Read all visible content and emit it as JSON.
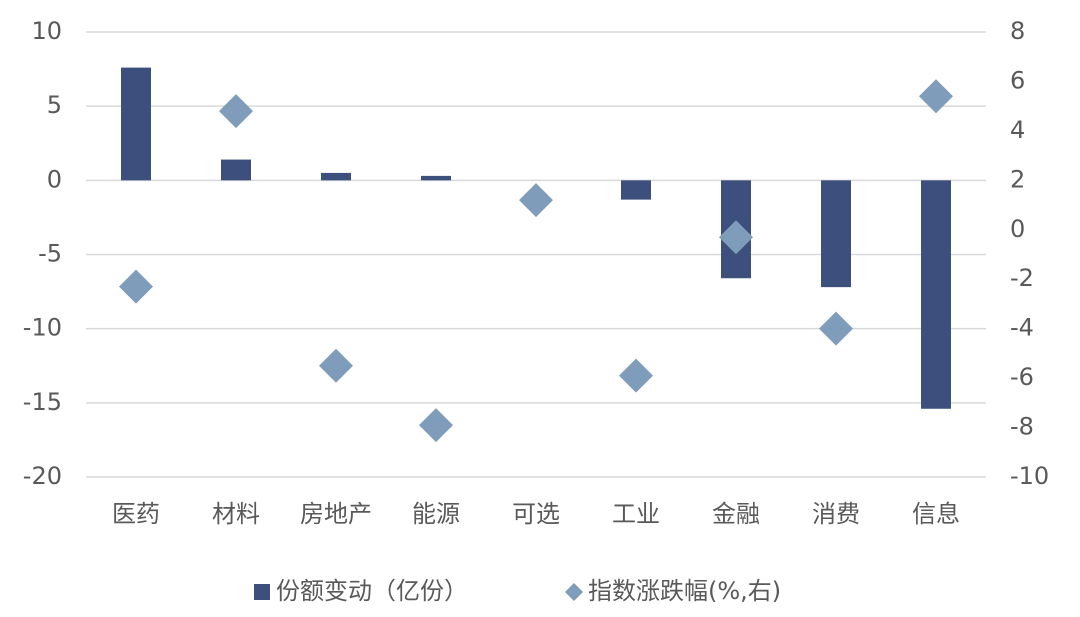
{
  "chart_data": {
    "type": "bar",
    "categories": [
      "医药",
      "材料",
      "房地产",
      "能源",
      "可选",
      "工业",
      "金融",
      "消费",
      "信息"
    ],
    "series": [
      {
        "name": "份额变动（亿份）",
        "type": "bar",
        "color": "#3d4f7c",
        "values": [
          7.6,
          1.4,
          0.5,
          0.3,
          0,
          -1.3,
          -6.6,
          -7.2,
          -15.4
        ]
      },
      {
        "name": "指数涨跌幅(%,右)",
        "type": "scatter",
        "axis": "y2",
        "color": "#7f9cbb",
        "values": [
          -2.3,
          4.8,
          -5.5,
          -7.9,
          1.2,
          -5.9,
          -0.3,
          -4.0,
          5.4
        ]
      }
    ],
    "ylim": [
      -20,
      10
    ],
    "yticks": [
      10,
      5,
      0,
      -5,
      -10,
      -15,
      -20
    ],
    "y2lim": [
      -10,
      8
    ],
    "y2ticks": [
      8,
      6,
      4,
      2,
      0,
      -2,
      -4,
      -6,
      -8,
      -10
    ],
    "grid": true,
    "legend": "bottom"
  }
}
